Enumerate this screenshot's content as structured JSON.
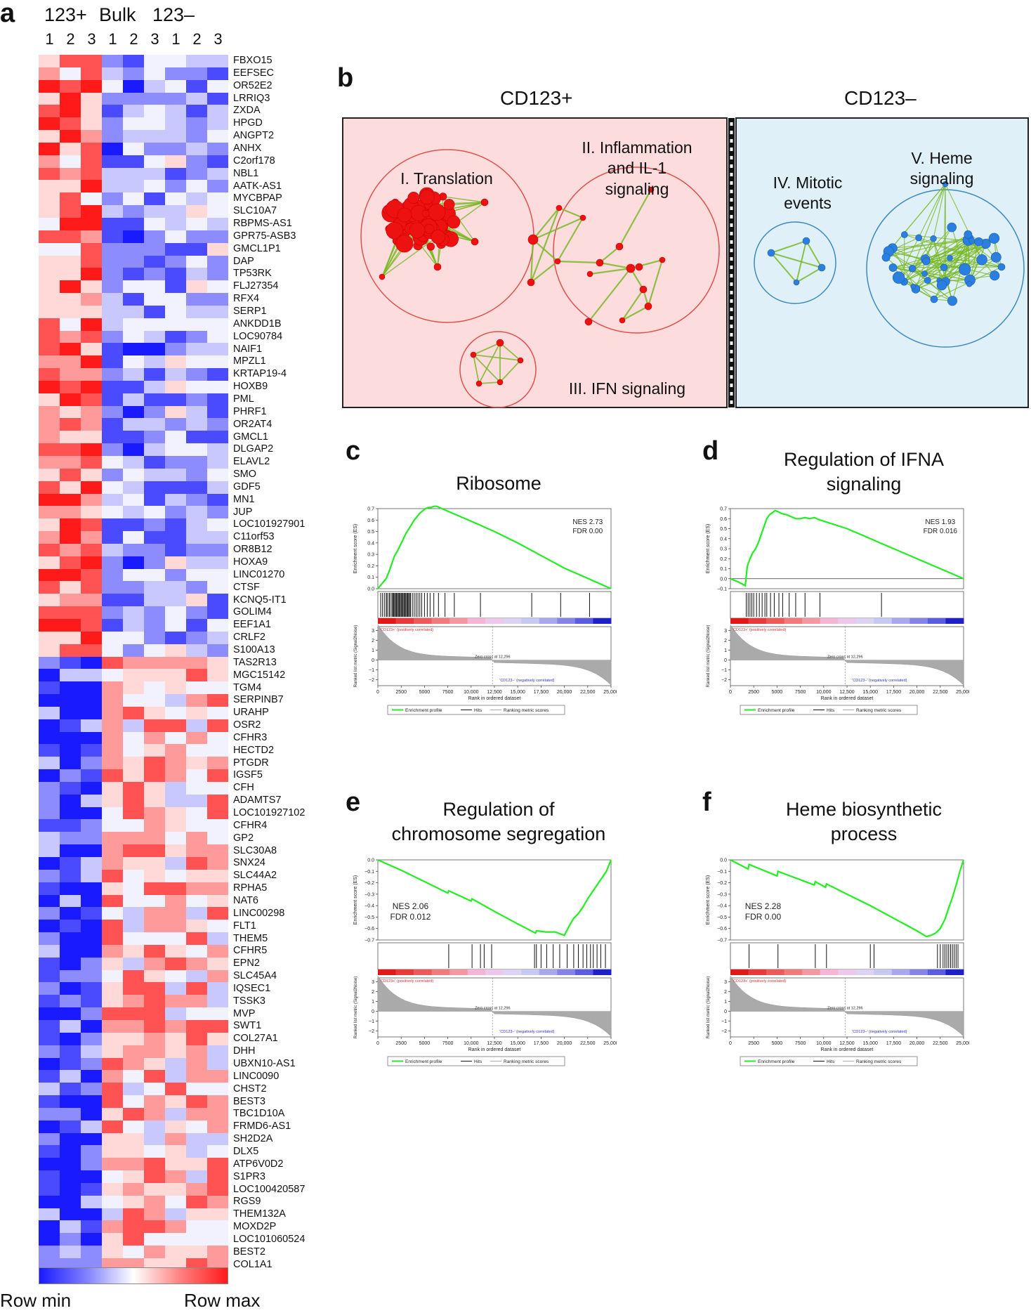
{
  "panels": {
    "a": "a",
    "b": "b",
    "c": "c",
    "d": "d",
    "e": "e",
    "f": "f"
  },
  "heatmap": {
    "groups": [
      "123+",
      "Bulk",
      "123–"
    ],
    "replicates": [
      "1",
      "2",
      "3",
      "1",
      "2",
      "3",
      "1",
      "2",
      "3"
    ],
    "genes": [
      "FBXO15",
      "EEFSEC",
      "OR52E2",
      "LRRIQ3",
      "ZXDA",
      "HPGD",
      "ANGPT2",
      "ANHX",
      "C2orf178",
      "NBL1",
      "AATK-AS1",
      "MYCBPAP",
      "SLC10A7",
      "RBPMS-AS1",
      "GPR75-ASB3",
      "GMCL1P1",
      "DAP",
      "TP53RK",
      "FLJ27354",
      "RFX4",
      "SERP1",
      "ANKDD1B",
      "LOC90784",
      "NAIF1",
      "MPZL1",
      "KRTAP19-4",
      "HOXB9",
      "PML",
      "PHRF1",
      "OR2AT4",
      "GMCL1",
      "DLGAP2",
      "ELAVL2",
      "SMO",
      "GDF5",
      "MN1",
      "JUP",
      "LOC101927901",
      "C11orf53",
      "OR8B12",
      "HOXA9",
      "LINC01270",
      "CTSF",
      "KCNQ5-IT1",
      "GOLIM4",
      "EEF1A1",
      "CRLF2",
      "S100A13",
      "TAS2R13",
      "MGC15142",
      "TGM4",
      "SERPINB7",
      "URAHP",
      "OSR2",
      "CFHR3",
      "HECTD2",
      "PTGDR",
      "IGSF5",
      "CFH",
      "ADAMTS7",
      "LOC101927102",
      "CFHR4",
      "GP2",
      "SLC30A8",
      "SNX24",
      "SLC44A2",
      "RPHA5",
      "NAT6",
      "LINC00298",
      "FLT1",
      "THEM5",
      "CFHR5",
      "EPN2",
      "SLC45A4",
      "IQSEC1",
      "TSSK3",
      "MVP",
      "SWT1",
      "COL27A1",
      "DHH",
      "UBXN10-AS1",
      "LINC0090",
      "CHST2",
      "BEST3",
      "TBC1D10A",
      "FRMD6-AS1",
      "SH2D2A",
      "DLX5",
      "ATP6V0D2",
      "S1PR3",
      "LOC100420587",
      "RGS9",
      "THEM132A",
      "MOXD2P",
      "LOC101060524",
      "BEST2",
      "COL1A1"
    ],
    "colorbar_min": "Row min",
    "colorbar_max": "Row max"
  },
  "network": {
    "left_title": "CD123+",
    "right_title": "CD123–",
    "clusters": [
      {
        "lines": [
          "I. Translation"
        ]
      },
      {
        "lines": [
          "II. Inflammation",
          "and IL-1",
          "signaling"
        ]
      },
      {
        "lines": [
          "III. IFN signaling"
        ]
      },
      {
        "lines": [
          "IV. Mitotic",
          "events"
        ]
      },
      {
        "lines": [
          "V. Heme",
          "signaling"
        ]
      }
    ],
    "colors": {
      "positive_bg": "#fcdcdc",
      "negative_bg": "#dff0f8",
      "positive_node": "#ee1111",
      "negative_node": "#2a7fe0",
      "edge": "#7ab828"
    }
  },
  "gsea_common": {
    "ylabel_es": "Enrichment score (ES)",
    "ylabel_metric": "Ranked list metric (Signal2Noise)",
    "xlabel": "Rank in ordered dataset",
    "pos_label": "'CD123+' (positively correlated)",
    "neg_label": "'CD123–' (negatively correlated)",
    "zero_cross": "Zero cross at 12,296",
    "legend": [
      "Enrichment profile",
      "Hits",
      "Ranking metric scores"
    ],
    "xticks": [
      "0",
      "2500",
      "5000",
      "7500",
      "10,000",
      "12,500",
      "15,000",
      "17,500",
      "20,000",
      "22,500",
      "25,000"
    ],
    "metric_yticks": [
      "3",
      "2",
      "1",
      "0",
      "−1",
      "−2"
    ],
    "colors": {
      "profile": "#22ee22",
      "hits": "#111111",
      "metric": "#aaaaaa"
    }
  },
  "chart_data": [
    {
      "type": "line",
      "panel": "c",
      "title_lines": [
        "Ribosome"
      ],
      "nes": "NES 2.73",
      "fdr": "FDR 0.00",
      "ylim": [
        0,
        0.7
      ],
      "yticks": [
        "0.7",
        "0.6",
        "0.5",
        "0.4",
        "0.3",
        "0.2",
        "0.1",
        "0.0"
      ],
      "xlim": [
        0,
        25000
      ],
      "es_x": [
        0,
        300,
        600,
        900,
        1200,
        1500,
        1800,
        2100,
        2400,
        2700,
        3000,
        3300,
        3600,
        3900,
        4200,
        4500,
        4800,
        5100,
        5400,
        5700,
        6000,
        6300,
        8000,
        10000,
        12500,
        15000,
        17500,
        20000,
        22500,
        25000
      ],
      "es_y": [
        0,
        0.03,
        0.06,
        0.09,
        0.15,
        0.22,
        0.29,
        0.33,
        0.38,
        0.43,
        0.48,
        0.52,
        0.56,
        0.6,
        0.63,
        0.66,
        0.68,
        0.7,
        0.71,
        0.71,
        0.72,
        0.72,
        0.66,
        0.59,
        0.5,
        0.4,
        0.29,
        0.18,
        0.09,
        0.0
      ],
      "hits": [
        300,
        500,
        700,
        900,
        1000,
        1200,
        1300,
        1500,
        1600,
        1700,
        1800,
        1900,
        2000,
        2100,
        2200,
        2300,
        2400,
        2500,
        2600,
        2700,
        2800,
        2900,
        3000,
        3100,
        3200,
        3300,
        3400,
        3500,
        3700,
        3900,
        4100,
        4300,
        4500,
        4700,
        5000,
        5300,
        5600,
        6000,
        6500,
        7200,
        8200,
        11000,
        16500,
        19600,
        22700
      ]
    },
    {
      "type": "line",
      "panel": "d",
      "title_lines": [
        "Regulation of IFNA",
        "signaling"
      ],
      "nes": "NES 1.93",
      "fdr": "FDR 0.016",
      "ylim": [
        -0.1,
        0.7
      ],
      "yticks": [
        "0.7",
        "0.6",
        "0.5",
        "0.4",
        "0.3",
        "0.2",
        "0.1",
        "0.0",
        "−0.1"
      ],
      "xlim": [
        0,
        25000
      ],
      "es_x": [
        0,
        800,
        1600,
        1800,
        2100,
        2400,
        2700,
        3000,
        3300,
        3600,
        3900,
        4200,
        4500,
        4800,
        5100,
        5500,
        6000,
        6500,
        7000,
        7500,
        8000,
        8500,
        9000,
        9500,
        12500,
        15000,
        17500,
        20000,
        22500,
        25000
      ],
      "es_y": [
        0,
        -0.03,
        -0.07,
        0.12,
        0.2,
        0.26,
        0.3,
        0.36,
        0.44,
        0.52,
        0.6,
        0.64,
        0.66,
        0.68,
        0.67,
        0.65,
        0.64,
        0.62,
        0.6,
        0.6,
        0.61,
        0.6,
        0.61,
        0.59,
        0.5,
        0.4,
        0.3,
        0.2,
        0.1,
        0.0
      ],
      "hits": [
        1700,
        1900,
        2100,
        2300,
        2500,
        2800,
        3100,
        3400,
        3700,
        3900,
        4300,
        4700,
        5200,
        5600,
        6300,
        7000,
        8000,
        9600,
        16200
      ]
    },
    {
      "type": "line",
      "panel": "e",
      "title_lines": [
        "Regulation of",
        "chromosome segregation"
      ],
      "nes": "NES 2.06",
      "fdr": "FDR 0.012",
      "ylim": [
        -0.7,
        0.0
      ],
      "yticks": [
        "0.0",
        "−0.1",
        "−0.2",
        "−0.3",
        "−0.4",
        "−0.5",
        "−0.6",
        "−0.7"
      ],
      "xlim": [
        0,
        25000
      ],
      "es_x": [
        0,
        2500,
        5000,
        7500,
        7600,
        10000,
        10100,
        12500,
        15000,
        16900,
        17000,
        18000,
        19000,
        20000,
        20500,
        21000,
        21500,
        22000,
        22500,
        23000,
        23500,
        24000,
        24500,
        25000
      ],
      "es_y": [
        0,
        -0.09,
        -0.19,
        -0.29,
        -0.27,
        -0.36,
        -0.34,
        -0.45,
        -0.56,
        -0.64,
        -0.62,
        -0.63,
        -0.63,
        -0.66,
        -0.58,
        -0.51,
        -0.47,
        -0.41,
        -0.34,
        -0.28,
        -0.22,
        -0.16,
        -0.1,
        0.0
      ],
      "hits": [
        7600,
        10100,
        11000,
        11400,
        12200,
        16800,
        17000,
        17500,
        18100,
        18800,
        19500,
        20300,
        21000,
        21500,
        22000,
        22400,
        22800,
        23100,
        23500,
        23900,
        24400
      ]
    },
    {
      "type": "line",
      "panel": "f",
      "title_lines": [
        "Heme biosynthetic",
        "process"
      ],
      "nes": "NES 2.28",
      "fdr": "FDR 0.00",
      "ylim": [
        -0.7,
        0.0
      ],
      "yticks": [
        "0.0",
        "−0.1",
        "−0.2",
        "−0.3",
        "−0.4",
        "−0.5",
        "−0.6",
        "−0.7"
      ],
      "xlim": [
        0,
        25000
      ],
      "es_x": [
        0,
        1900,
        2000,
        5000,
        5100,
        9000,
        9100,
        10200,
        10300,
        12500,
        15000,
        17500,
        20000,
        21000,
        21500,
        22000,
        22500,
        23000,
        23400,
        23800,
        24200,
        24600,
        25000
      ],
      "es_y": [
        0,
        -0.08,
        -0.04,
        -0.14,
        -0.1,
        -0.22,
        -0.19,
        -0.24,
        -0.21,
        -0.3,
        -0.4,
        -0.51,
        -0.62,
        -0.67,
        -0.66,
        -0.64,
        -0.6,
        -0.52,
        -0.42,
        -0.33,
        -0.22,
        -0.1,
        0.0
      ],
      "hits": [
        2000,
        5100,
        9100,
        10300,
        15000,
        15400,
        22200,
        22500,
        22800,
        23000,
        23200,
        23400,
        23600,
        23800,
        24000,
        24200,
        24400
      ]
    }
  ]
}
